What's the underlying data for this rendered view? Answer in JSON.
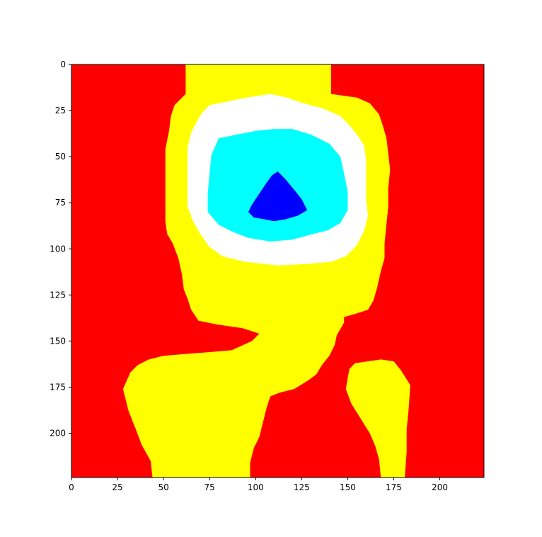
{
  "chart_data": {
    "type": "heatmap",
    "title": "",
    "xlabel": "",
    "ylabel": "",
    "xlim": [
      0,
      224
    ],
    "ylim": [
      224,
      0
    ],
    "grid": false,
    "legend": "none",
    "xticks": [
      0,
      25,
      50,
      75,
      100,
      125,
      150,
      175,
      200
    ],
    "yticks": [
      0,
      25,
      50,
      75,
      100,
      125,
      150,
      175,
      200
    ],
    "xtick_labels": [
      "0",
      "25",
      "50",
      "75",
      "100",
      "125",
      "150",
      "175",
      "200"
    ],
    "ytick_labels": [
      "0",
      "25",
      "50",
      "75",
      "100",
      "125",
      "150",
      "175",
      "200"
    ],
    "levels": [
      {
        "name": "background",
        "color": "#ff0000"
      },
      {
        "name": "level-1",
        "color": "#ffff00"
      },
      {
        "name": "level-2",
        "color": "#ffffff"
      },
      {
        "name": "level-3",
        "color": "#00ffff"
      },
      {
        "name": "level-4",
        "color": "#0000ff"
      }
    ],
    "regions": [
      {
        "level": "level-1",
        "polygon": [
          [
            62,
            0
          ],
          [
            141,
            0
          ],
          [
            141,
            16
          ],
          [
            155,
            18
          ],
          [
            162,
            21
          ],
          [
            167,
            27
          ],
          [
            169,
            33
          ],
          [
            171,
            40
          ],
          [
            172,
            48
          ],
          [
            173,
            57
          ],
          [
            172,
            67
          ],
          [
            172,
            77
          ],
          [
            171,
            87
          ],
          [
            170,
            97
          ],
          [
            170,
            105
          ],
          [
            168,
            112
          ],
          [
            166,
            121
          ],
          [
            164,
            128
          ],
          [
            161,
            133
          ],
          [
            155,
            135
          ],
          [
            148,
            137
          ],
          [
            148,
            140
          ],
          [
            144,
            147
          ],
          [
            143,
            152
          ],
          [
            140,
            158
          ],
          [
            136,
            163
          ],
          [
            133,
            168
          ],
          [
            129,
            171
          ],
          [
            121,
            176
          ],
          [
            113,
            178
          ],
          [
            108,
            180
          ],
          [
            106,
            186
          ],
          [
            104,
            194
          ],
          [
            102,
            202
          ],
          [
            99,
            208
          ],
          [
            97,
            216
          ],
          [
            97,
            224
          ],
          [
            44,
            224
          ],
          [
            43,
            215
          ],
          [
            38,
            206
          ],
          [
            35,
            198
          ],
          [
            31,
            188
          ],
          [
            28,
            176
          ],
          [
            32,
            167
          ],
          [
            36,
            163
          ],
          [
            42,
            160
          ],
          [
            50,
            158
          ],
          [
            62,
            157
          ],
          [
            75,
            156
          ],
          [
            87,
            155
          ],
          [
            98,
            150
          ],
          [
            102,
            146
          ],
          [
            93,
            143
          ],
          [
            79,
            141
          ],
          [
            69,
            139
          ],
          [
            65,
            133
          ],
          [
            63,
            127
          ],
          [
            61,
            122
          ],
          [
            60,
            114
          ],
          [
            58,
            105
          ],
          [
            55,
            97
          ],
          [
            52,
            92
          ],
          [
            51,
            85
          ],
          [
            51,
            72
          ],
          [
            51,
            58
          ],
          [
            51,
            46
          ],
          [
            53,
            36
          ],
          [
            54,
            28
          ],
          [
            56,
            22
          ],
          [
            62,
            16
          ]
        ]
      },
      {
        "level": "level-1",
        "polygon": [
          [
            154,
            162
          ],
          [
            161,
            161
          ],
          [
            168,
            160
          ],
          [
            175,
            161
          ],
          [
            179,
            166
          ],
          [
            184,
            174
          ],
          [
            183,
            188
          ],
          [
            182,
            198
          ],
          [
            182,
            210
          ],
          [
            181,
            224
          ],
          [
            168,
            224
          ],
          [
            167,
            214
          ],
          [
            165,
            207
          ],
          [
            162,
            200
          ],
          [
            157,
            192
          ],
          [
            152,
            184
          ],
          [
            149,
            176
          ],
          [
            150,
            170
          ],
          [
            151,
            165
          ]
        ]
      },
      {
        "level": "level-2",
        "polygon": [
          [
            75,
            22
          ],
          [
            85,
            20
          ],
          [
            95,
            18
          ],
          [
            108,
            16
          ],
          [
            117,
            18
          ],
          [
            126,
            21
          ],
          [
            137,
            24
          ],
          [
            146,
            28
          ],
          [
            151,
            33
          ],
          [
            155,
            38
          ],
          [
            159,
            44
          ],
          [
            160,
            52
          ],
          [
            160,
            62
          ],
          [
            160,
            73
          ],
          [
            161,
            82
          ],
          [
            159,
            90
          ],
          [
            155,
            98
          ],
          [
            149,
            104
          ],
          [
            141,
            107
          ],
          [
            130,
            108
          ],
          [
            112,
            109
          ],
          [
            94,
            107
          ],
          [
            82,
            104
          ],
          [
            75,
            99
          ],
          [
            70,
            92
          ],
          [
            66,
            85
          ],
          [
            63,
            77
          ],
          [
            63,
            65
          ],
          [
            63,
            55
          ],
          [
            63,
            45
          ],
          [
            65,
            37
          ],
          [
            68,
            31
          ],
          [
            71,
            26
          ]
        ]
      },
      {
        "level": "level-3",
        "polygon": [
          [
            80,
            40
          ],
          [
            90,
            38
          ],
          [
            100,
            36
          ],
          [
            110,
            35
          ],
          [
            120,
            35
          ],
          [
            130,
            38
          ],
          [
            140,
            43
          ],
          [
            146,
            50
          ],
          [
            148,
            59
          ],
          [
            150,
            69
          ],
          [
            150,
            79
          ],
          [
            146,
            86
          ],
          [
            139,
            90
          ],
          [
            131,
            92
          ],
          [
            120,
            95
          ],
          [
            108,
            96
          ],
          [
            96,
            94
          ],
          [
            88,
            91
          ],
          [
            80,
            87
          ],
          [
            74,
            80
          ],
          [
            74,
            70
          ],
          [
            75,
            59
          ],
          [
            76,
            49
          ]
        ]
      },
      {
        "level": "level-4",
        "polygon": [
          [
            112,
            58
          ],
          [
            116,
            62
          ],
          [
            121,
            68
          ],
          [
            125,
            73
          ],
          [
            128,
            79
          ],
          [
            123,
            82
          ],
          [
            116,
            84
          ],
          [
            110,
            85
          ],
          [
            105,
            84
          ],
          [
            99,
            83
          ],
          [
            96,
            80
          ],
          [
            98,
            76
          ],
          [
            102,
            70
          ],
          [
            106,
            64
          ],
          [
            109,
            60
          ]
        ]
      }
    ]
  }
}
